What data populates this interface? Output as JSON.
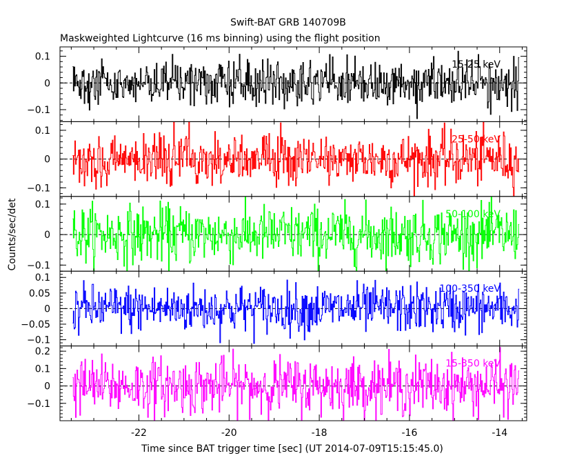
{
  "title": "Swift-BAT GRB 140709B",
  "subtitle": "Maskweighted Lightcurve (16 ms binning) using the flight position",
  "xlabel": "Time since BAT trigger time [sec] (UT 2014-07-09T15:15:45.0)",
  "ylabel": "Counts/sec/det",
  "chart_data": {
    "type": "line",
    "render": "step",
    "bin_width_s": 0.016,
    "x_range": [
      -23.47,
      -13.55
    ],
    "xlim": [
      -23.75,
      -13.4
    ],
    "x_ticks": [
      -22,
      -20,
      -18,
      -16,
      -14
    ],
    "x_tick_labels": [
      "-22",
      "-20",
      "-18",
      "-16",
      "-14"
    ],
    "note": "series values are 16 ms binned noise-like counts about zero; amplitude ranges listed per band",
    "panels": [
      {
        "name": "15-25 keV",
        "color": "#000000",
        "ylim": [
          -0.145,
          0.135
        ],
        "y_ticks": [
          -0.1,
          0,
          0.1
        ],
        "y_tick_labels": [
          "−0.1",
          "0",
          "0.1"
        ],
        "typical_range": [
          -0.11,
          0.11
        ]
      },
      {
        "name": "25-50 keV",
        "color": "#ff0000",
        "ylim": [
          -0.13,
          0.13
        ],
        "y_ticks": [
          -0.1,
          0,
          0.1
        ],
        "y_tick_labels": [
          "−0.1",
          "0",
          "0.1"
        ],
        "typical_range": [
          -0.12,
          0.12
        ]
      },
      {
        "name": "50-100 keV",
        "color": "#00ff00",
        "ylim": [
          -0.12,
          0.125
        ],
        "y_ticks": [
          -0.1,
          0,
          0.1
        ],
        "y_tick_labels": [
          "−0.1",
          "0",
          "0.1"
        ],
        "typical_range": [
          -0.12,
          0.125
        ]
      },
      {
        "name": "100-350 keV",
        "color": "#0000ff",
        "ylim": [
          -0.12,
          0.12
        ],
        "y_ticks": [
          -0.1,
          -0.05,
          0,
          0.05,
          0.1
        ],
        "y_tick_labels": [
          "−0.1",
          "−0.05",
          "0",
          "0.05",
          "0.1"
        ],
        "typical_range": [
          -0.1,
          0.1
        ]
      },
      {
        "name": "15-350 keV",
        "color": "#ff00ff",
        "ylim": [
          -0.2,
          0.23
        ],
        "y_ticks": [
          -0.1,
          0,
          0.1,
          0.2
        ],
        "y_tick_labels": [
          "−0.1",
          "0",
          "0.1",
          "0.2"
        ],
        "typical_range": [
          -0.2,
          0.22
        ]
      }
    ]
  }
}
